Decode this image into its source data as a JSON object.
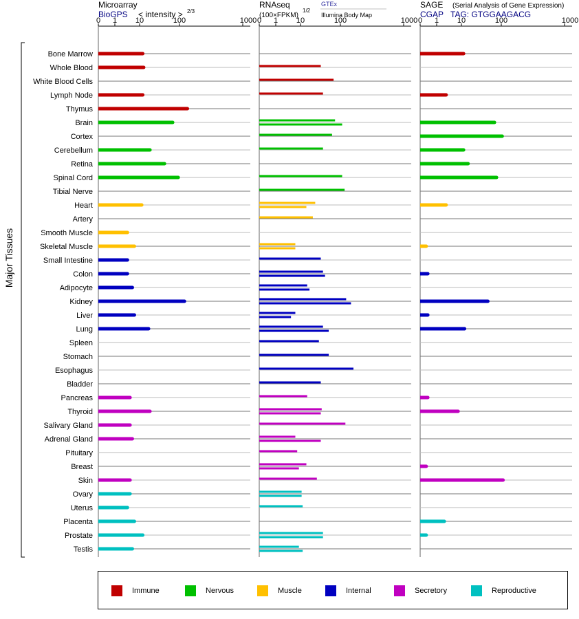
{
  "y_axis_title": "Major Tissues",
  "colors": {
    "Immune": "#c00000",
    "Nervous": "#00c000",
    "Muscle": "#ffc000",
    "Internal": "#0000c0",
    "Secretory": "#c000c0",
    "Reproductive": "#00c0c0",
    "title_blue": "#000080",
    "gtex_blue": "#3030a0"
  },
  "panels": [
    {
      "title": "Microarray",
      "subtitle": "BioGPS",
      "subtitle_extra": "< intensity >",
      "exponent": "2/3"
    },
    {
      "title": "RNAseq",
      "subtitle": "(100×FPKM)",
      "exponent": "1/2",
      "source_a": "GTEx",
      "source_b": "Illumina Body Map"
    },
    {
      "title": "SAGE",
      "title_extra": "(Serial Analysis of Gene Expression)",
      "subtitle": "CGAP",
      "tag": "TAG: GTGGAAGACG"
    }
  ],
  "legend": [
    {
      "name": "Immune",
      "color": "#c00000"
    },
    {
      "name": "Nervous",
      "color": "#00c000"
    },
    {
      "name": "Muscle",
      "color": "#ffc000"
    },
    {
      "name": "Internal",
      "color": "#0000c0"
    },
    {
      "name": "Secretory",
      "color": "#c000c0"
    },
    {
      "name": "Reproductive",
      "color": "#00c0c0"
    }
  ],
  "chart_data": {
    "type": "bar",
    "orientation": "horizontal",
    "x_tick_labels": [
      "0",
      "1",
      "10",
      "100",
      "1000"
    ],
    "x_tick_values": [
      0,
      1,
      10,
      100,
      1000
    ],
    "x_scale": "power",
    "xlim": [
      0,
      1000
    ],
    "categories": [
      "Bone Marrow",
      "Whole Blood",
      "White Blood Cells",
      "Lymph Node",
      "Thymus",
      "Brain",
      "Cortex",
      "Cerebellum",
      "Retina",
      "Spinal Cord",
      "Tibial Nerve",
      "Heart",
      "Artery",
      "Smooth Muscle",
      "Skeletal Muscle",
      "Small Intestine",
      "Colon",
      "Adipocyte",
      "Kidney",
      "Liver",
      "Lung",
      "Spleen",
      "Stomach",
      "Esophagus",
      "Bladder",
      "Pancreas",
      "Thyroid",
      "Salivary Gland",
      "Adrenal Gland",
      "Pituitary",
      "Breast",
      "Skin",
      "Ovary",
      "Uterus",
      "Placenta",
      "Prostate",
      "Testis"
    ],
    "groups": [
      "Immune",
      "Immune",
      "Immune",
      "Immune",
      "Immune",
      "Nervous",
      "Nervous",
      "Nervous",
      "Nervous",
      "Nervous",
      "Nervous",
      "Muscle",
      "Muscle",
      "Muscle",
      "Muscle",
      "Internal",
      "Internal",
      "Internal",
      "Internal",
      "Internal",
      "Internal",
      "Internal",
      "Internal",
      "Internal",
      "Internal",
      "Secretory",
      "Secretory",
      "Secretory",
      "Secretory",
      "Secretory",
      "Secretory",
      "Secretory",
      "Reproductive",
      "Reproductive",
      "Reproductive",
      "Reproductive",
      "Reproductive"
    ],
    "series": [
      {
        "name": "Microarray",
        "values": [
          13,
          14,
          null,
          13,
          150,
          75,
          null,
          22,
          51,
          95,
          null,
          12,
          null,
          4,
          7,
          4,
          4,
          6,
          130,
          7,
          20,
          null,
          null,
          null,
          null,
          5,
          22,
          5,
          6,
          null,
          null,
          5,
          5,
          4,
          7,
          13,
          6
        ]
      },
      {
        "name": "GTEx",
        "values": [
          null,
          40,
          75,
          45,
          null,
          80,
          70,
          45,
          null,
          110,
          125,
          29,
          25,
          null,
          7,
          40,
          45,
          17,
          135,
          7,
          45,
          36,
          60,
          190,
          40,
          17,
          42,
          130,
          7,
          8,
          16,
          32,
          11,
          12,
          null,
          45,
          9
        ]
      },
      {
        "name": "Illumina Body Map",
        "values": [
          null,
          null,
          null,
          null,
          null,
          110,
          null,
          null,
          null,
          null,
          null,
          16,
          null,
          null,
          7,
          null,
          50,
          20,
          170,
          5,
          60,
          null,
          null,
          null,
          null,
          null,
          40,
          null,
          40,
          null,
          9,
          null,
          11,
          null,
          null,
          45,
          12
        ]
      },
      {
        "name": "SAGE",
        "values": [
          12,
          null,
          null,
          3,
          null,
          75,
          105,
          12,
          17,
          82,
          null,
          3,
          null,
          null,
          0.05,
          null,
          0.1,
          null,
          55,
          0.1,
          13,
          null,
          null,
          null,
          null,
          0.1,
          8,
          null,
          null,
          null,
          0.05,
          110,
          null,
          null,
          2.5,
          0.05,
          null
        ]
      }
    ]
  }
}
